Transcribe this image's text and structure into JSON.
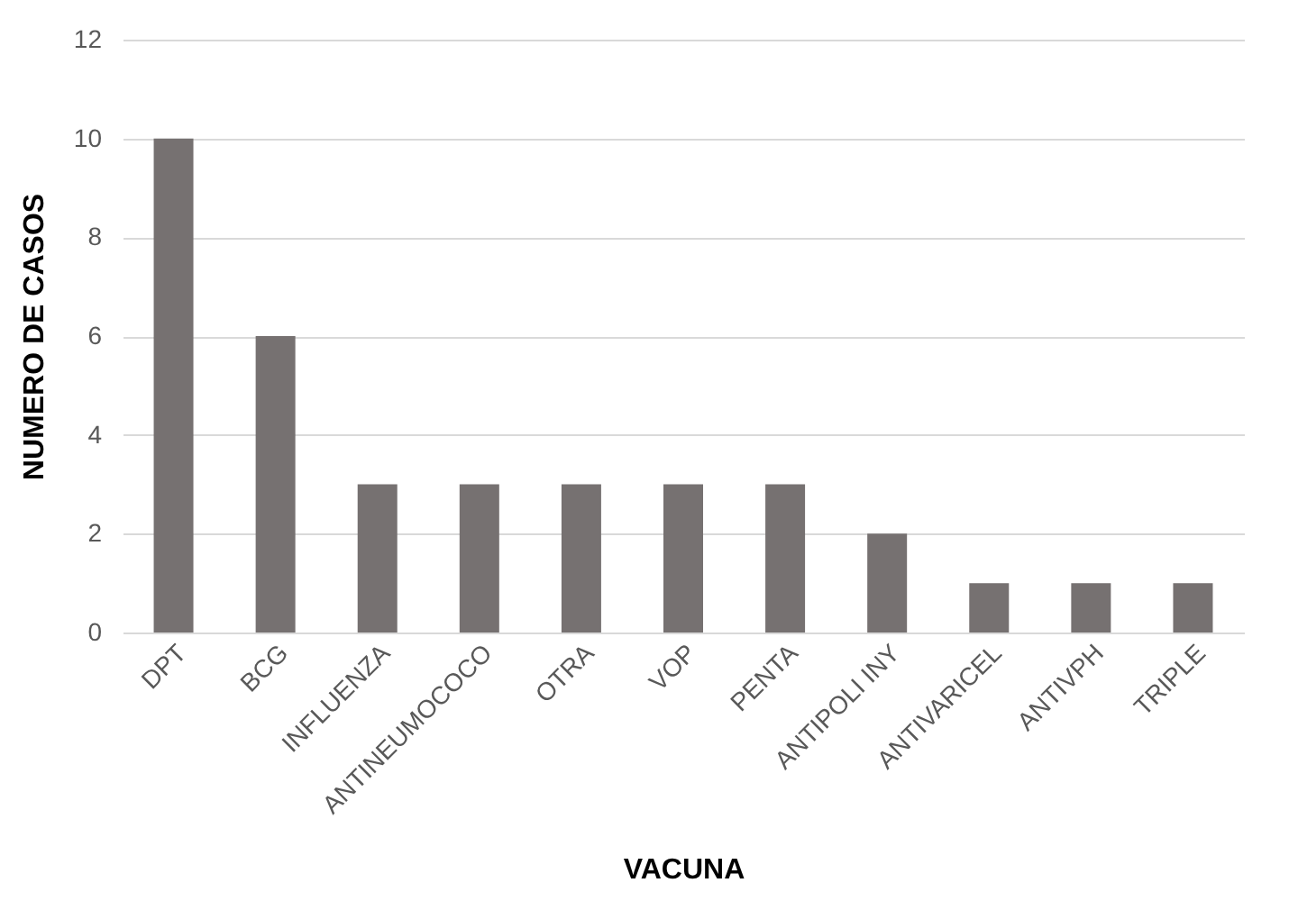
{
  "chart_data": {
    "type": "bar",
    "categories": [
      "DPT",
      "BCG",
      "INFLUENZA",
      "ANTINEUMOCOCO",
      "OTRA",
      "VOP",
      "PENTA",
      "ANTIPOLI INY",
      "ANTIVARICEL",
      "ANTIVPH",
      "TRIPLE"
    ],
    "values": [
      10,
      6,
      3,
      3,
      3,
      3,
      3,
      2,
      1,
      1,
      1
    ],
    "color": "#767171",
    "xlabel": "VACUNA",
    "ylabel": "NUMERO DE CASOS",
    "ylim": [
      0,
      12
    ],
    "yticks": [
      0,
      2,
      4,
      6,
      8,
      10,
      12
    ],
    "grid": "y"
  }
}
